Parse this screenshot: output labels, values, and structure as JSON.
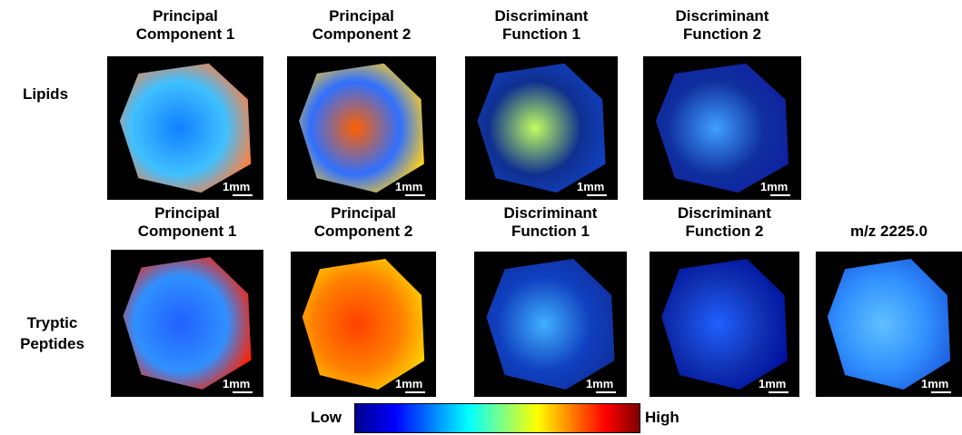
{
  "row_labels": [
    "Lipids",
    "Tryptic Peptides"
  ],
  "rows": [
    {
      "panels": [
        {
          "title": [
            "Principal",
            "Component 1"
          ],
          "scale": "1mm"
        },
        {
          "title": [
            "Principal",
            "Component 2"
          ],
          "scale": "1mm"
        },
        {
          "title": [
            "Discriminant",
            "Function 1"
          ],
          "scale": "1mm"
        },
        {
          "title": [
            "Discriminant",
            "Function 2"
          ],
          "scale": "1mm"
        }
      ]
    },
    {
      "panels": [
        {
          "title": [
            "Principal",
            "Component 1"
          ],
          "scale": "1mm"
        },
        {
          "title": [
            "Principal",
            "Component 2"
          ],
          "scale": "1mm"
        },
        {
          "title": [
            "Discriminant",
            "Function 1"
          ],
          "scale": "1mm"
        },
        {
          "title": [
            "Discriminant",
            "Function 2"
          ],
          "scale": "1mm"
        },
        {
          "title": [
            "m/z 2225.0"
          ],
          "scale": "1mm"
        }
      ]
    }
  ],
  "colorbar": {
    "low": "Low",
    "high": "High"
  }
}
